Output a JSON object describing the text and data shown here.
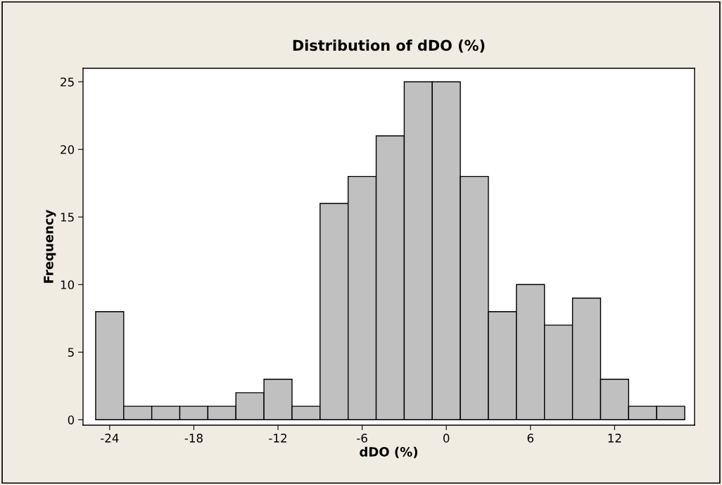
{
  "chart_data": {
    "type": "histogram",
    "title": "Distribution of dDO (%)",
    "xlabel": "dDO (%)",
    "ylabel": "Frequency",
    "bins": [
      -25,
      -23,
      -21,
      -19,
      -17,
      -15,
      -13,
      -11,
      -9,
      -7,
      -5,
      -3,
      -1,
      1,
      3,
      5,
      7,
      9,
      11,
      13,
      15,
      17
    ],
    "values": [
      8,
      1,
      1,
      1,
      1,
      2,
      3,
      1,
      16,
      18,
      21,
      25,
      25,
      18,
      8,
      10,
      7,
      9,
      3,
      1,
      1
    ],
    "color": "#c0c0c0",
    "xlim": [
      -25.9,
      17.7
    ],
    "ylim": [
      -0.4,
      26
    ],
    "xticks": [
      -24,
      -18,
      -12,
      -6,
      0,
      6,
      12
    ],
    "yticks": [
      0,
      5,
      10,
      15,
      20,
      25
    ],
    "grid": false
  }
}
